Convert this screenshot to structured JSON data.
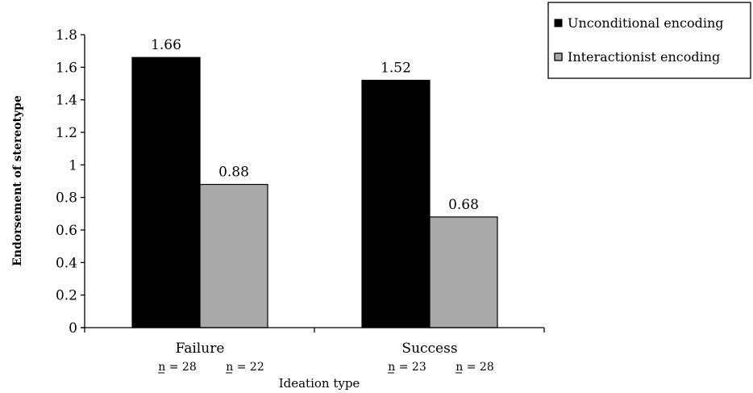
{
  "chart_data": {
    "type": "bar",
    "categories": [
      "Failure",
      "Success"
    ],
    "category_n": [
      [
        "n = 28",
        "n = 22"
      ],
      [
        "n = 23",
        "n = 28"
      ]
    ],
    "series": [
      {
        "name": "Unconditional encoding",
        "values": [
          1.66,
          1.52
        ],
        "color": "#000000"
      },
      {
        "name": "Interactionist encoding",
        "values": [
          0.88,
          0.68
        ],
        "color": "#a9a9a9"
      }
    ],
    "data_labels": [
      [
        "1.66",
        "0.88"
      ],
      [
        "1.52",
        "0.68"
      ]
    ],
    "title": "",
    "xlabel": "Ideation type",
    "ylabel": "Endorsement of stereotype",
    "ylim": [
      0,
      1.8
    ],
    "yticks": [
      0,
      0.2,
      0.4,
      0.6,
      0.8,
      1,
      1.2,
      1.4,
      1.6,
      1.8
    ],
    "ytick_labels": [
      "0",
      "0.2",
      "0.4",
      "0.6",
      "0.8",
      "1",
      "1.2",
      "1.4",
      "1.6",
      "1.8"
    ],
    "grid": false,
    "legend_position": "top-right"
  }
}
